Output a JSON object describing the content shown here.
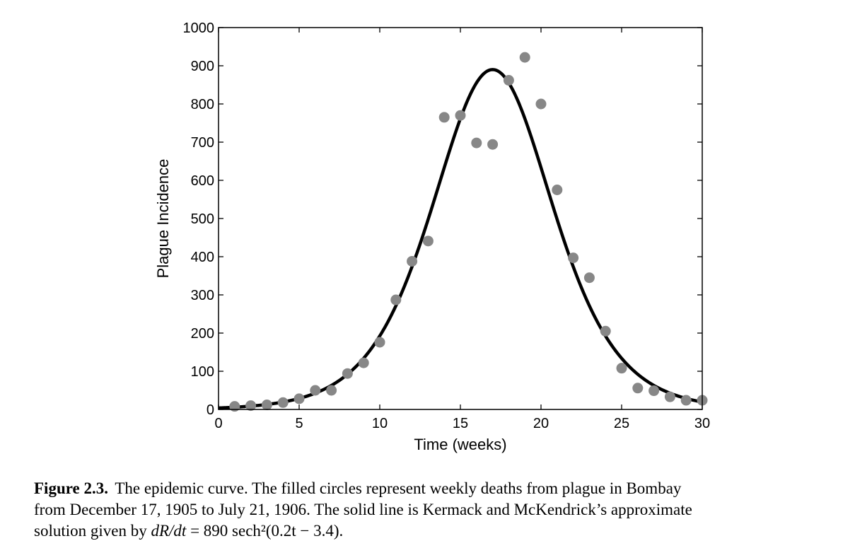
{
  "chart_data": {
    "type": "scatter",
    "xlabel": "Time (weeks)",
    "ylabel": "Plague Incidence",
    "xlim": [
      0,
      30
    ],
    "ylim": [
      0,
      1000
    ],
    "xticks": [
      0,
      5,
      10,
      15,
      20,
      25,
      30
    ],
    "yticks": [
      0,
      100,
      200,
      300,
      400,
      500,
      600,
      700,
      800,
      900,
      1000
    ],
    "grid": false,
    "legend": "none",
    "series": [
      {
        "kind": "points",
        "color": "#878787",
        "x": [
          1,
          2,
          3,
          4,
          5,
          6,
          7,
          8,
          9,
          10,
          11,
          12,
          13,
          14,
          15,
          16,
          17,
          18,
          19,
          20,
          21,
          22,
          23,
          24,
          25,
          26,
          27,
          28,
          29,
          30
        ],
        "y": [
          8,
          10,
          12,
          18,
          28,
          50,
          50,
          94,
          122,
          176,
          287,
          388,
          441,
          765,
          770,
          698,
          694,
          862,
          922,
          800,
          575,
          397,
          345,
          205,
          108,
          56,
          49,
          33,
          24,
          24
        ]
      },
      {
        "kind": "curve",
        "color": "#000000",
        "amplitude": 890,
        "rate": 0.2,
        "shift": 3.4
      }
    ]
  },
  "caption": {
    "label": "Figure 2.3.",
    "line1": "The epidemic curve. The filled circles represent weekly deaths from plague in Bombay",
    "line2": "from December 17, 1905 to July 21, 1906. The solid line is Kermack and McKendrick’s approximate",
    "line3_prefix": "solution given by",
    "formula_lhs": "dR/dt",
    "formula_rhs": "= 890 sech²(0.2t − 3.4)."
  }
}
